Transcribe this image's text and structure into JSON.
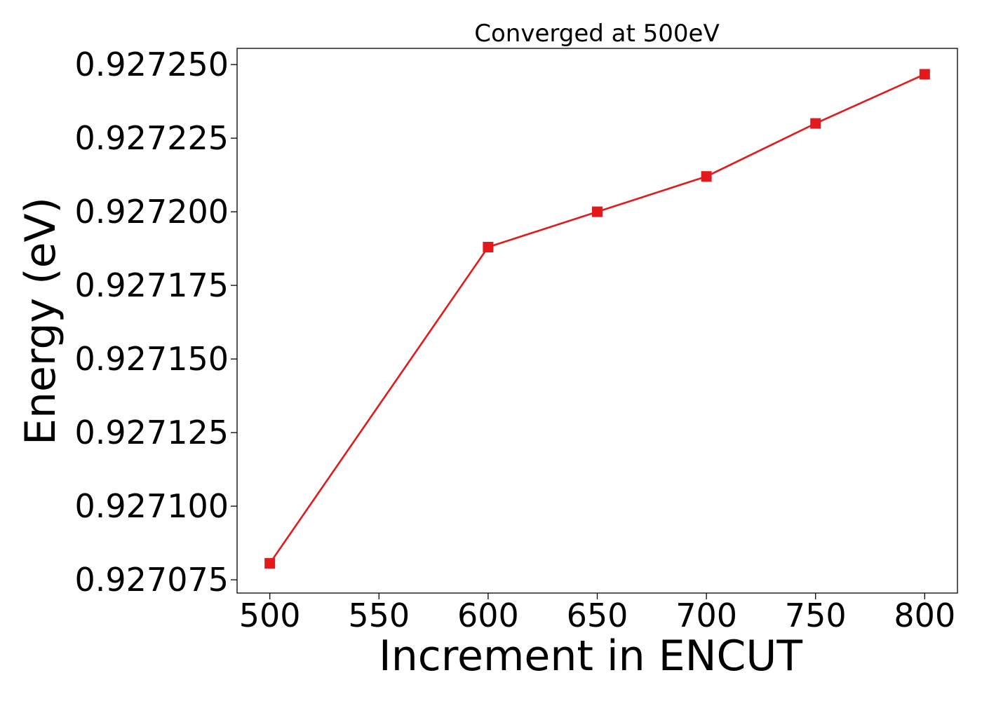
{
  "chart_data": {
    "type": "line",
    "title": "Converged at 500eV",
    "xlabel": "Increment in ENCUT",
    "ylabel": "Energy (eV)",
    "x": [
      500,
      600,
      650,
      700,
      750,
      800
    ],
    "series": [
      {
        "values": [
          0.9270806,
          0.927188,
          0.9272,
          0.927212,
          0.92723,
          0.9272467
        ],
        "color": "#e31a1c",
        "marker": "square"
      }
    ],
    "xticks": [
      500,
      550,
      600,
      650,
      700,
      750,
      800
    ],
    "xtick_labels": [
      "500",
      "550",
      "600",
      "650",
      "700",
      "750",
      "800"
    ],
    "yticks": [
      0.927075,
      0.9271,
      0.927125,
      0.92715,
      0.927175,
      0.9272,
      0.927225,
      0.92725
    ],
    "ytick_labels": [
      "0.927075",
      "0.927100",
      "0.927125",
      "0.927150",
      "0.927175",
      "0.927200",
      "0.927225",
      "0.927250"
    ],
    "xlim": [
      485,
      815
    ],
    "ylim": [
      0.9270705,
      0.9272555
    ],
    "grid": false,
    "legend": false
  }
}
